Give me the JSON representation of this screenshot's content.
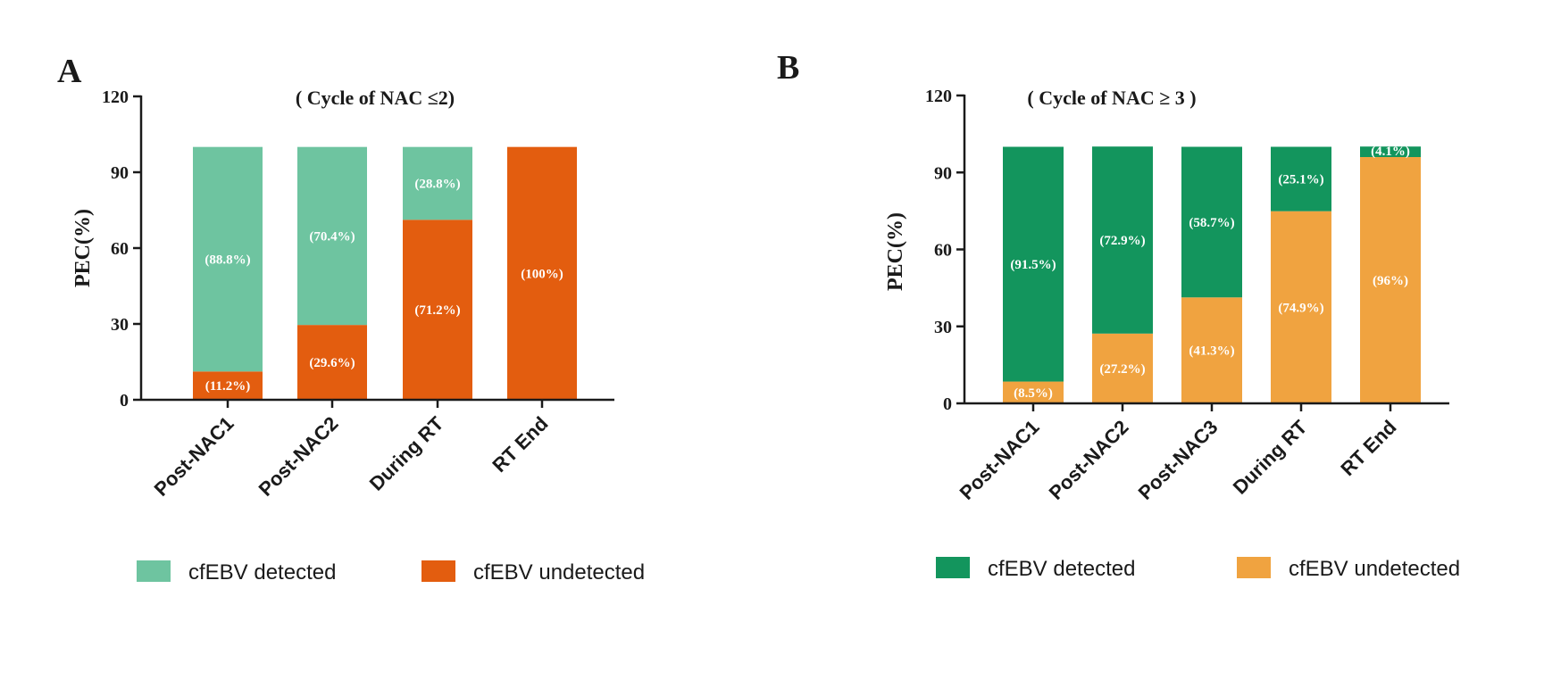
{
  "chart_data": [
    {
      "panel": "A",
      "type": "bar",
      "stacked": true,
      "title": "( Cycle of NAC ≤2)",
      "xlabel": "",
      "ylabel": "PEC(%)",
      "ylim": [
        0,
        120
      ],
      "yticks": [
        "0",
        "30",
        "60",
        "90",
        "120"
      ],
      "categories": [
        "Post-NAC1",
        "Post-NAC2",
        "During RT",
        "RT End"
      ],
      "series": [
        {
          "name": "cfEBV undetected",
          "color": "#e35d0f",
          "values": [
            11.2,
            29.6,
            71.2,
            100
          ],
          "labels": [
            "(11.2%)",
            "(29.6%)",
            "(71.2%)",
            "(100%)"
          ]
        },
        {
          "name": "cfEBV detected",
          "color": "#6ec4a0",
          "values": [
            88.8,
            70.4,
            28.8,
            0
          ],
          "labels": [
            "(88.8%)",
            "(70.4%)",
            "(28.8%)",
            ""
          ]
        }
      ],
      "legend": [
        "cfEBV detected",
        "cfEBV undetected"
      ],
      "legend_position": "bottom"
    },
    {
      "panel": "B",
      "type": "bar",
      "stacked": true,
      "title": "( Cycle of NAC ≥ 3 )",
      "xlabel": "",
      "ylabel": "PEC(%)",
      "ylim": [
        0,
        120
      ],
      "yticks": [
        "0",
        "30",
        "60",
        "90",
        "120"
      ],
      "categories": [
        "Post-NAC1",
        "Post-NAC2",
        "Post-NAC3",
        "During RT",
        "RT End"
      ],
      "series": [
        {
          "name": "cfEBV undetected",
          "color": "#f0a340",
          "values": [
            8.5,
            27.2,
            41.3,
            74.9,
            96
          ],
          "labels": [
            "(8.5%)",
            "(27.2%)",
            "(41.3%)",
            "(74.9%)",
            "(96%)"
          ]
        },
        {
          "name": "cfEBV detected",
          "color": "#13955d",
          "values": [
            91.5,
            72.9,
            58.7,
            25.1,
            4.1
          ],
          "labels": [
            "(91.5%)",
            "(72.9%)",
            "(58.7%)",
            "(25.1%)",
            "(4.1%)"
          ]
        }
      ],
      "legend": [
        "cfEBV detected",
        "cfEBV undetected"
      ],
      "legend_position": "bottom"
    }
  ]
}
